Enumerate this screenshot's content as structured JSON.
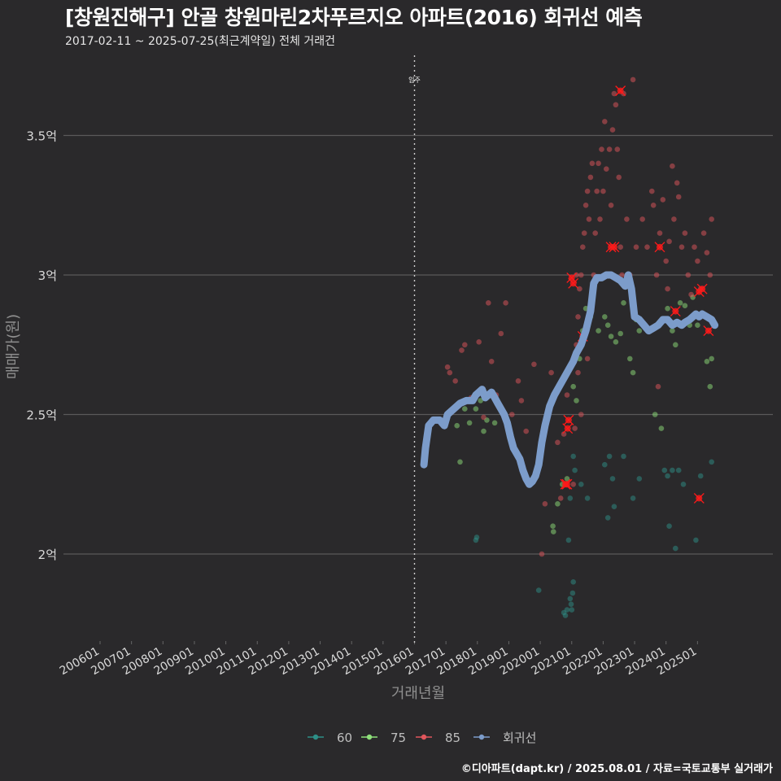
{
  "title": "[창원진해구] 안골 창원마린2차푸르지오 아파트(2016) 회귀선 예측",
  "subtitle": "2017-02-11 ~ 2025-07-25(최근계약일) 전체 거래건",
  "caption": "©디아파트(dapt.kr) / 2025.08.01 / 자료=국토교통부 실거래가",
  "colors": {
    "background": "#2a292b",
    "grid": "#5a5a5a",
    "size_60": "#2d8f87",
    "size_75": "#8ee07a",
    "size_85": "#e0565c",
    "regression": "#7c9cca",
    "highlight": "#ff1a1a"
  },
  "chart_data": {
    "type": "scatter",
    "title": "[창원진해구] 안골 창원마린2차푸르지오 아파트(2016) 회귀선 예측",
    "xlabel": "거래년월",
    "ylabel": "매매가(원)",
    "x_ticks": [
      "200601",
      "200701",
      "200801",
      "200901",
      "201001",
      "201101",
      "201201",
      "201301",
      "201401",
      "201501",
      "201601",
      "201701",
      "201801",
      "201901",
      "202001",
      "202101",
      "202201",
      "202301",
      "202401",
      "202501"
    ],
    "x_range": [
      2006.0,
      2025.6
    ],
    "ylim": [
      1.7,
      3.78
    ],
    "y_ticks": [
      2,
      2.5,
      3,
      3.5
    ],
    "y_tick_labels": [
      "2억",
      "2.5억",
      "3억",
      "3.5억"
    ],
    "annotation": {
      "x": 2016.0,
      "label": "입주"
    },
    "legend": [
      {
        "key": "60",
        "label": "60"
      },
      {
        "key": "75",
        "label": "75"
      },
      {
        "key": "85",
        "label": "85"
      },
      {
        "key": "reg",
        "label": "회귀선"
      }
    ],
    "series": [
      {
        "name": "60",
        "points": [
          [
            2017.95,
            2.05
          ],
          [
            2017.98,
            2.06
          ],
          [
            2019.95,
            1.87
          ],
          [
            2020.75,
            1.79
          ],
          [
            2020.8,
            1.78
          ],
          [
            2020.85,
            1.8
          ],
          [
            2020.95,
            1.84
          ],
          [
            2020.98,
            1.82
          ],
          [
            2021.0,
            1.8
          ],
          [
            2021.03,
            1.86
          ],
          [
            2021.05,
            1.9
          ],
          [
            2020.9,
            2.05
          ],
          [
            2020.95,
            2.2
          ],
          [
            2021.05,
            2.35
          ],
          [
            2021.1,
            2.3
          ],
          [
            2021.3,
            2.25
          ],
          [
            2021.5,
            2.2
          ],
          [
            2022.05,
            2.32
          ],
          [
            2022.2,
            2.35
          ],
          [
            2022.3,
            2.27
          ],
          [
            2022.15,
            2.13
          ],
          [
            2022.35,
            2.17
          ],
          [
            2022.65,
            2.35
          ],
          [
            2022.95,
            2.2
          ],
          [
            2023.15,
            2.27
          ],
          [
            2023.95,
            2.3
          ],
          [
            2024.05,
            2.28
          ],
          [
            2024.2,
            2.3
          ],
          [
            2024.4,
            2.3
          ],
          [
            2024.3,
            2.02
          ],
          [
            2024.55,
            2.25
          ],
          [
            2024.95,
            2.05
          ],
          [
            2025.1,
            2.28
          ],
          [
            2025.45,
            2.33
          ],
          [
            2024.1,
            2.1
          ]
        ]
      },
      {
        "name": "75",
        "points": [
          [
            2017.35,
            2.46
          ],
          [
            2017.45,
            2.33
          ],
          [
            2017.6,
            2.52
          ],
          [
            2017.75,
            2.47
          ],
          [
            2017.95,
            2.52
          ],
          [
            2018.1,
            2.55
          ],
          [
            2018.2,
            2.44
          ],
          [
            2018.3,
            2.48
          ],
          [
            2018.55,
            2.47
          ],
          [
            2020.4,
            2.1
          ],
          [
            2020.42,
            2.08
          ],
          [
            2020.55,
            2.18
          ],
          [
            2020.7,
            2.25
          ],
          [
            2020.85,
            2.27
          ],
          [
            2021.05,
            2.6
          ],
          [
            2021.15,
            2.55
          ],
          [
            2021.25,
            2.7
          ],
          [
            2021.35,
            2.8
          ],
          [
            2021.45,
            2.88
          ],
          [
            2021.6,
            2.85
          ],
          [
            2021.85,
            2.8
          ],
          [
            2022.05,
            2.85
          ],
          [
            2022.15,
            2.82
          ],
          [
            2022.25,
            2.78
          ],
          [
            2022.4,
            2.76
          ],
          [
            2022.55,
            2.79
          ],
          [
            2022.65,
            2.9
          ],
          [
            2022.85,
            2.7
          ],
          [
            2022.95,
            2.65
          ],
          [
            2023.05,
            2.84
          ],
          [
            2023.15,
            2.8
          ],
          [
            2023.65,
            2.5
          ],
          [
            2023.85,
            2.45
          ],
          [
            2024.05,
            2.88
          ],
          [
            2024.2,
            2.8
          ],
          [
            2024.3,
            2.75
          ],
          [
            2024.45,
            2.9
          ],
          [
            2024.6,
            2.89
          ],
          [
            2024.85,
            2.92
          ],
          [
            2025.0,
            2.82
          ],
          [
            2025.3,
            2.69
          ],
          [
            2025.4,
            2.6
          ],
          [
            2025.45,
            2.7
          ],
          [
            2024.75,
            2.82
          ]
        ]
      },
      {
        "name": "85",
        "points": [
          [
            2017.05,
            2.67
          ],
          [
            2017.12,
            2.65
          ],
          [
            2017.3,
            2.62
          ],
          [
            2017.5,
            2.73
          ],
          [
            2017.6,
            2.75
          ],
          [
            2017.8,
            2.56
          ],
          [
            2018.05,
            2.76
          ],
          [
            2018.2,
            2.49
          ],
          [
            2018.35,
            2.9
          ],
          [
            2018.45,
            2.69
          ],
          [
            2018.6,
            2.57
          ],
          [
            2018.75,
            2.79
          ],
          [
            2018.9,
            2.9
          ],
          [
            2019.1,
            2.5
          ],
          [
            2019.3,
            2.62
          ],
          [
            2019.4,
            2.55
          ],
          [
            2019.55,
            2.44
          ],
          [
            2019.8,
            2.68
          ],
          [
            2020.15,
            2.18
          ],
          [
            2020.05,
            2.0
          ],
          [
            2020.25,
            2.5
          ],
          [
            2020.35,
            2.65
          ],
          [
            2020.55,
            2.4
          ],
          [
            2020.65,
            2.2
          ],
          [
            2020.75,
            2.43
          ],
          [
            2020.85,
            2.57
          ],
          [
            2021.05,
            2.25
          ],
          [
            2021.1,
            2.45
          ],
          [
            2021.15,
            2.75
          ],
          [
            2021.2,
            2.85
          ],
          [
            2021.25,
            2.95
          ],
          [
            2021.3,
            3.0
          ],
          [
            2021.35,
            3.1
          ],
          [
            2021.4,
            3.15
          ],
          [
            2021.45,
            3.25
          ],
          [
            2021.5,
            3.3
          ],
          [
            2021.55,
            3.2
          ],
          [
            2021.6,
            3.35
          ],
          [
            2021.65,
            3.4
          ],
          [
            2021.7,
            3.0
          ],
          [
            2021.75,
            3.15
          ],
          [
            2021.8,
            3.3
          ],
          [
            2021.85,
            3.4
          ],
          [
            2021.9,
            3.2
          ],
          [
            2021.95,
            3.45
          ],
          [
            2022.0,
            3.3
          ],
          [
            2022.05,
            3.55
          ],
          [
            2022.1,
            3.38
          ],
          [
            2022.15,
            3.0
          ],
          [
            2022.2,
            3.45
          ],
          [
            2022.25,
            3.25
          ],
          [
            2022.3,
            3.52
          ],
          [
            2022.35,
            3.65
          ],
          [
            2022.4,
            3.61
          ],
          [
            2022.45,
            3.45
          ],
          [
            2022.5,
            3.35
          ],
          [
            2022.55,
            3.1
          ],
          [
            2022.6,
            3.0
          ],
          [
            2022.65,
            3.65
          ],
          [
            2022.75,
            3.2
          ],
          [
            2022.85,
            3.0
          ],
          [
            2022.95,
            3.7
          ],
          [
            2023.05,
            3.1
          ],
          [
            2023.25,
            3.2
          ],
          [
            2023.4,
            3.1
          ],
          [
            2023.55,
            3.3
          ],
          [
            2023.6,
            3.25
          ],
          [
            2023.7,
            3.0
          ],
          [
            2023.8,
            3.15
          ],
          [
            2023.9,
            3.27
          ],
          [
            2024.0,
            3.05
          ],
          [
            2024.1,
            3.12
          ],
          [
            2024.2,
            3.39
          ],
          [
            2024.25,
            3.2
          ],
          [
            2024.35,
            3.33
          ],
          [
            2024.4,
            3.28
          ],
          [
            2024.5,
            3.1
          ],
          [
            2024.6,
            3.15
          ],
          [
            2024.7,
            3.0
          ],
          [
            2024.8,
            2.93
          ],
          [
            2024.9,
            3.1
          ],
          [
            2025.0,
            3.05
          ],
          [
            2025.1,
            2.95
          ],
          [
            2025.2,
            3.15
          ],
          [
            2025.3,
            3.08
          ],
          [
            2025.4,
            3.0
          ],
          [
            2025.45,
            3.2
          ],
          [
            2023.75,
            2.6
          ],
          [
            2024.05,
            2.95
          ],
          [
            2021.15,
            3.0
          ],
          [
            2021.2,
            2.65
          ],
          [
            2021.3,
            2.5
          ],
          [
            2021.5,
            2.7
          ]
        ]
      }
    ],
    "highlights": [
      [
        2020.8,
        2.25
      ],
      [
        2020.85,
        2.25
      ],
      [
        2020.87,
        2.45
      ],
      [
        2020.9,
        2.48
      ],
      [
        2021.0,
        2.99
      ],
      [
        2021.05,
        2.97
      ],
      [
        2021.35,
        2.78
      ],
      [
        2022.25,
        3.1
      ],
      [
        2022.35,
        3.1
      ],
      [
        2022.55,
        3.66
      ],
      [
        2023.8,
        3.1
      ],
      [
        2024.3,
        2.87
      ],
      [
        2025.05,
        2.2
      ],
      [
        2025.05,
        2.94
      ],
      [
        2025.15,
        2.95
      ],
      [
        2025.35,
        2.8
      ]
    ],
    "regression": [
      [
        2016.3,
        2.32
      ],
      [
        2016.35,
        2.38
      ],
      [
        2016.45,
        2.46
      ],
      [
        2016.6,
        2.48
      ],
      [
        2016.8,
        2.48
      ],
      [
        2016.95,
        2.46
      ],
      [
        2017.05,
        2.5
      ],
      [
        2017.25,
        2.52
      ],
      [
        2017.45,
        2.54
      ],
      [
        2017.65,
        2.55
      ],
      [
        2017.85,
        2.55
      ],
      [
        2017.95,
        2.57
      ],
      [
        2018.05,
        2.58
      ],
      [
        2018.15,
        2.59
      ],
      [
        2018.25,
        2.56
      ],
      [
        2018.35,
        2.57
      ],
      [
        2018.45,
        2.58
      ],
      [
        2018.55,
        2.56
      ],
      [
        2018.65,
        2.54
      ],
      [
        2018.75,
        2.52
      ],
      [
        2018.85,
        2.5
      ],
      [
        2018.95,
        2.47
      ],
      [
        2019.05,
        2.42
      ],
      [
        2019.15,
        2.38
      ],
      [
        2019.25,
        2.36
      ],
      [
        2019.35,
        2.34
      ],
      [
        2019.45,
        2.3
      ],
      [
        2019.55,
        2.27
      ],
      [
        2019.65,
        2.25
      ],
      [
        2019.75,
        2.26
      ],
      [
        2019.85,
        2.28
      ],
      [
        2019.95,
        2.32
      ],
      [
        2020.05,
        2.4
      ],
      [
        2020.15,
        2.46
      ],
      [
        2020.3,
        2.53
      ],
      [
        2020.45,
        2.57
      ],
      [
        2020.6,
        2.6
      ],
      [
        2020.75,
        2.63
      ],
      [
        2020.9,
        2.66
      ],
      [
        2021.05,
        2.69
      ],
      [
        2021.15,
        2.72
      ],
      [
        2021.3,
        2.75
      ],
      [
        2021.45,
        2.8
      ],
      [
        2021.6,
        2.87
      ],
      [
        2021.7,
        2.97
      ],
      [
        2021.8,
        2.99
      ],
      [
        2021.95,
        2.99
      ],
      [
        2022.1,
        3.0
      ],
      [
        2022.25,
        3.0
      ],
      [
        2022.4,
        2.99
      ],
      [
        2022.55,
        2.98
      ],
      [
        2022.7,
        2.96
      ],
      [
        2022.8,
        3.0
      ],
      [
        2022.9,
        2.95
      ],
      [
        2023.0,
        2.85
      ],
      [
        2023.15,
        2.84
      ],
      [
        2023.3,
        2.82
      ],
      [
        2023.45,
        2.8
      ],
      [
        2023.6,
        2.81
      ],
      [
        2023.75,
        2.82
      ],
      [
        2023.9,
        2.84
      ],
      [
        2024.05,
        2.84
      ],
      [
        2024.2,
        2.82
      ],
      [
        2024.35,
        2.83
      ],
      [
        2024.5,
        2.82
      ],
      [
        2024.6,
        2.83
      ],
      [
        2024.75,
        2.84
      ],
      [
        2024.85,
        2.85
      ],
      [
        2024.95,
        2.86
      ],
      [
        2025.05,
        2.85
      ],
      [
        2025.15,
        2.86
      ],
      [
        2025.3,
        2.85
      ],
      [
        2025.45,
        2.84
      ],
      [
        2025.55,
        2.82
      ]
    ]
  }
}
